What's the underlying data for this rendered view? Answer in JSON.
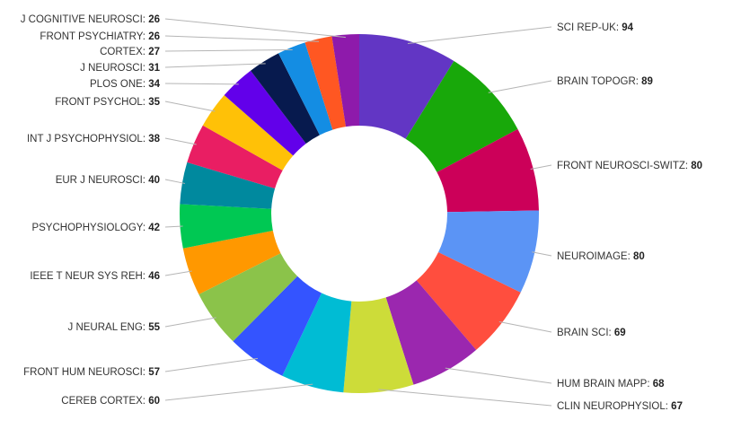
{
  "chart_data": {
    "type": "pie",
    "donut": true,
    "legend": "none",
    "categories": [
      "SCI REP-UK",
      "BRAIN TOPOGR",
      "FRONT NEUROSCI-SWITZ",
      "NEUROIMAGE",
      "BRAIN SCI",
      "HUM BRAIN MAPP",
      "CLIN NEUROPHYSIOL",
      "CEREB CORTEX",
      "FRONT HUM NEUROSCI",
      "J NEURAL ENG",
      "IEEE T NEUR SYS REH",
      "PSYCHOPHYSIOLOGY",
      "EUR J NEUROSCI",
      "INT J PSYCHOPHYSIOL",
      "FRONT PSYCHOL",
      "PLOS ONE",
      "J NEUROSCI",
      "CORTEX",
      "FRONT PSYCHIATRY",
      "J COGNITIVE NEUROSCI"
    ],
    "values": [
      94,
      89,
      80,
      80,
      69,
      68,
      67,
      60,
      57,
      55,
      46,
      42,
      40,
      38,
      35,
      34,
      31,
      27,
      26,
      26
    ],
    "colors": [
      "#6236c4",
      "#18a80a",
      "#cc0059",
      "#5b94f5",
      "#ff4e3e",
      "#9b27af",
      "#cddc39",
      "#00bcd4",
      "#3454ff",
      "#8bc34a",
      "#ff9800",
      "#00c853",
      "#00899e",
      "#e91e63",
      "#ffc107",
      "#6200ea",
      "#071a4e",
      "#148de3",
      "#ff5722",
      "#8e1aab"
    ],
    "label_separator": ": "
  }
}
